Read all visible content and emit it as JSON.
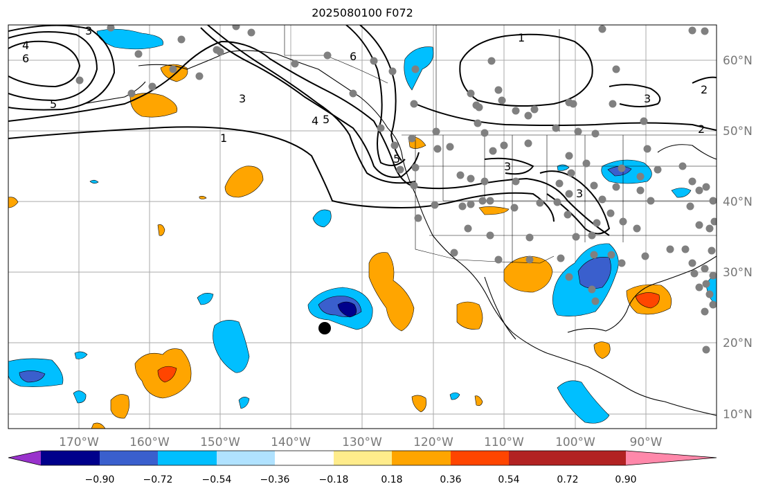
{
  "title": "2025080100 F072",
  "map": {
    "lon_labels": [
      "170°W",
      "160°W",
      "150°W",
      "140°W",
      "130°W",
      "120°W",
      "110°W",
      "100°W",
      "90°W"
    ],
    "lat_labels": [
      "60°N",
      "50°N",
      "40°N",
      "30°N",
      "20°N",
      "10°N"
    ],
    "contour_labels": [
      "3",
      "4",
      "6",
      "5",
      "3",
      "1",
      "4",
      "5",
      "6",
      "1",
      "5",
      "3",
      "3",
      "2",
      "3",
      "2"
    ]
  },
  "colorbar": {
    "colors": [
      "#9932cc",
      "#00008b",
      "#3a5fcd",
      "#00bfff",
      "#b0e2ff",
      "#ffffff",
      "#ffec8b",
      "#ffa500",
      "#ff4500",
      "#b22222",
      "#ff88aa"
    ],
    "ticks": [
      "−0.90",
      "−0.72",
      "−0.54",
      "−0.36",
      "−0.18",
      "0.18",
      "0.36",
      "0.54",
      "0.72",
      "0.90"
    ]
  },
  "markers": {
    "station_color": "#808080",
    "center_color": "#000000"
  }
}
